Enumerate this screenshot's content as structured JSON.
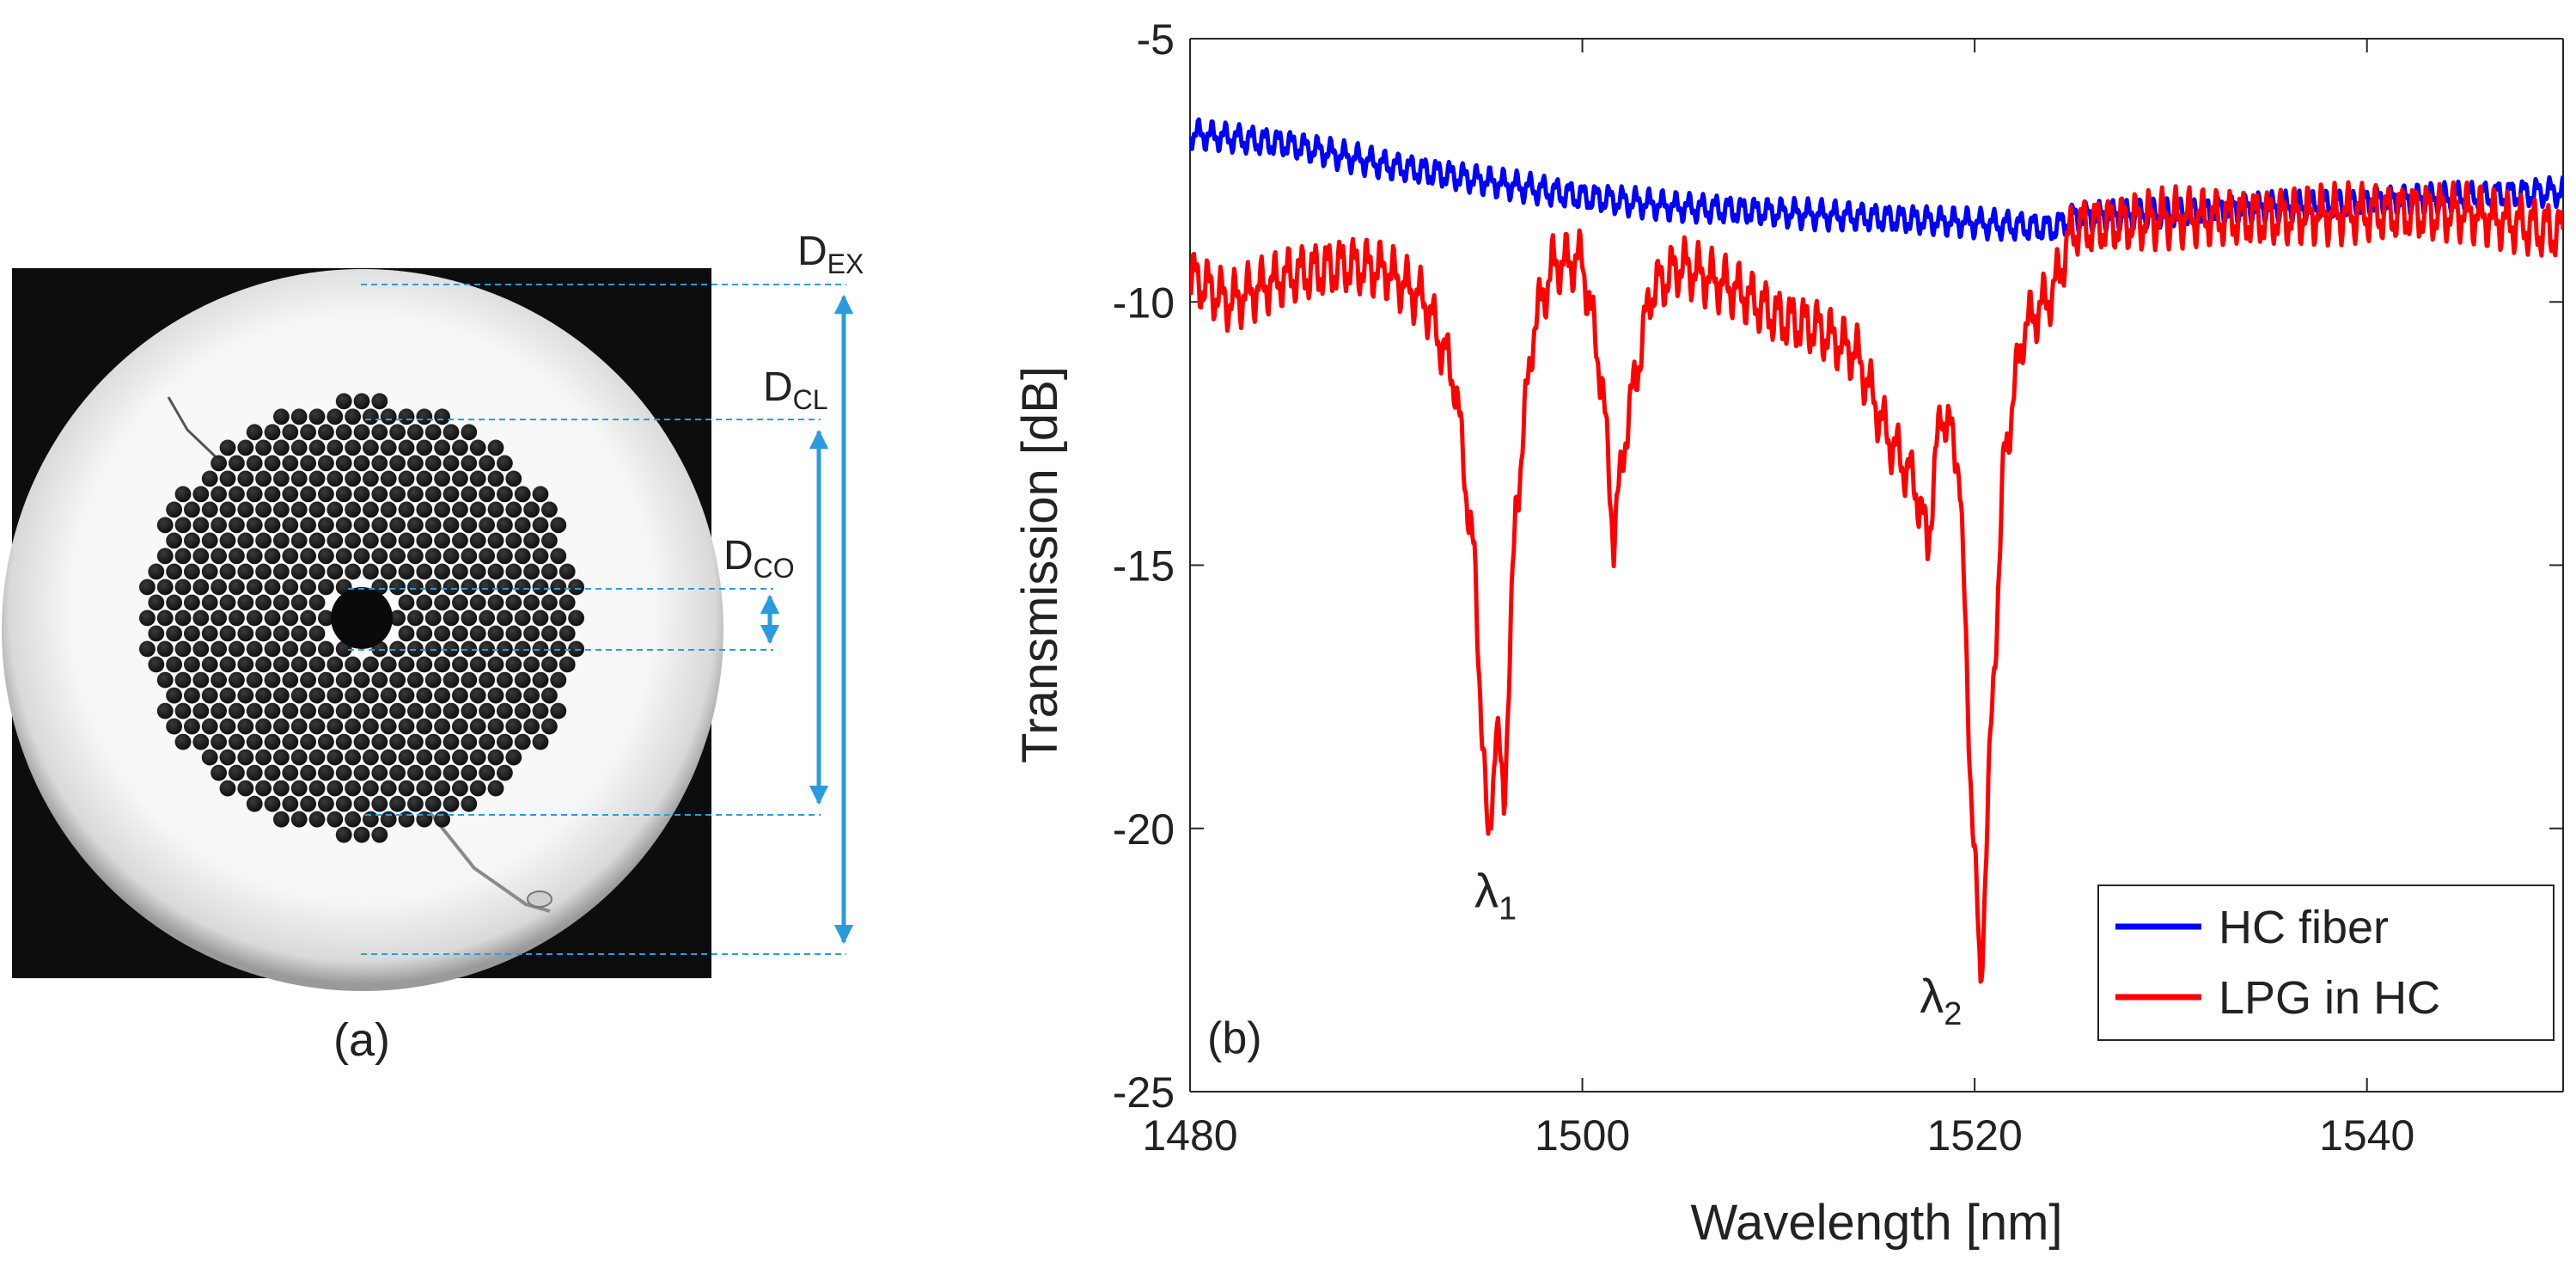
{
  "panel_a": {
    "caption": "(a)",
    "labels": {
      "ex": "D",
      "ex_sub": "EX",
      "cl": "D",
      "cl_sub": "CL",
      "co": "D",
      "co_sub": "CO"
    }
  },
  "chart_data": {
    "type": "line",
    "panel_label": "(b)",
    "xlabel": "Wavelength [nm]",
    "ylabel": "Transmission [dB]",
    "xlim": [
      1480,
      1550
    ],
    "ylim": [
      -25,
      -5
    ],
    "xticks": [
      1480,
      1500,
      1520,
      1540
    ],
    "yticks": [
      -5,
      -10,
      -15,
      -20,
      -25
    ],
    "legend_position": "bottom-right",
    "annotations": [
      {
        "symbol": "λ",
        "sub": "1",
        "x": 1494.5,
        "y": -21.5
      },
      {
        "symbol": "λ",
        "sub": "2",
        "x": 1517.2,
        "y": -23.5
      }
    ],
    "series": [
      {
        "name": "HC fiber",
        "color": "#0000ff",
        "ripple_db": 0.3,
        "x": [
          1480,
          1485,
          1490,
          1495,
          1500,
          1505,
          1510,
          1515,
          1520,
          1524,
          1525,
          1530,
          1535,
          1540,
          1545,
          1550
        ],
        "y": [
          -6.8,
          -7.0,
          -7.4,
          -7.7,
          -8.0,
          -8.2,
          -8.3,
          -8.4,
          -8.5,
          -8.6,
          -8.4,
          -8.3,
          -8.2,
          -8.1,
          -8.0,
          -7.9
        ]
      },
      {
        "name": "LPG in HC",
        "color": "#ff0000",
        "ripple_db": 0.6,
        "x": [
          1480,
          1482,
          1485,
          1488,
          1490,
          1492,
          1493.5,
          1494.5,
          1495.2,
          1495.6,
          1496.0,
          1496.6,
          1497.5,
          1498.5,
          1500,
          1501,
          1501.6,
          1502.2,
          1503.5,
          1505,
          1508,
          1510,
          1512,
          1514,
          1515.5,
          1517,
          1517.6,
          1518.3,
          1519.2,
          1519.8,
          1520.3,
          1520.8,
          1521.5,
          1522.5,
          1524,
          1525,
          1530,
          1535,
          1540,
          1545,
          1550
        ],
        "y": [
          -9.5,
          -10.0,
          -9.5,
          -9.3,
          -9.4,
          -10.0,
          -11.5,
          -15.0,
          -20.5,
          -18.0,
          -19.5,
          -14.0,
          -10.5,
          -9.3,
          -9.2,
          -11.5,
          -14.5,
          -12.5,
          -9.8,
          -9.3,
          -9.8,
          -10.3,
          -10.5,
          -11.0,
          -12.5,
          -13.5,
          -14.6,
          -12.0,
          -13.0,
          -19.0,
          -23.0,
          -18.5,
          -13.0,
          -10.5,
          -9.8,
          -8.6,
          -8.4,
          -8.4,
          -8.3,
          -8.3,
          -8.7
        ]
      }
    ]
  }
}
